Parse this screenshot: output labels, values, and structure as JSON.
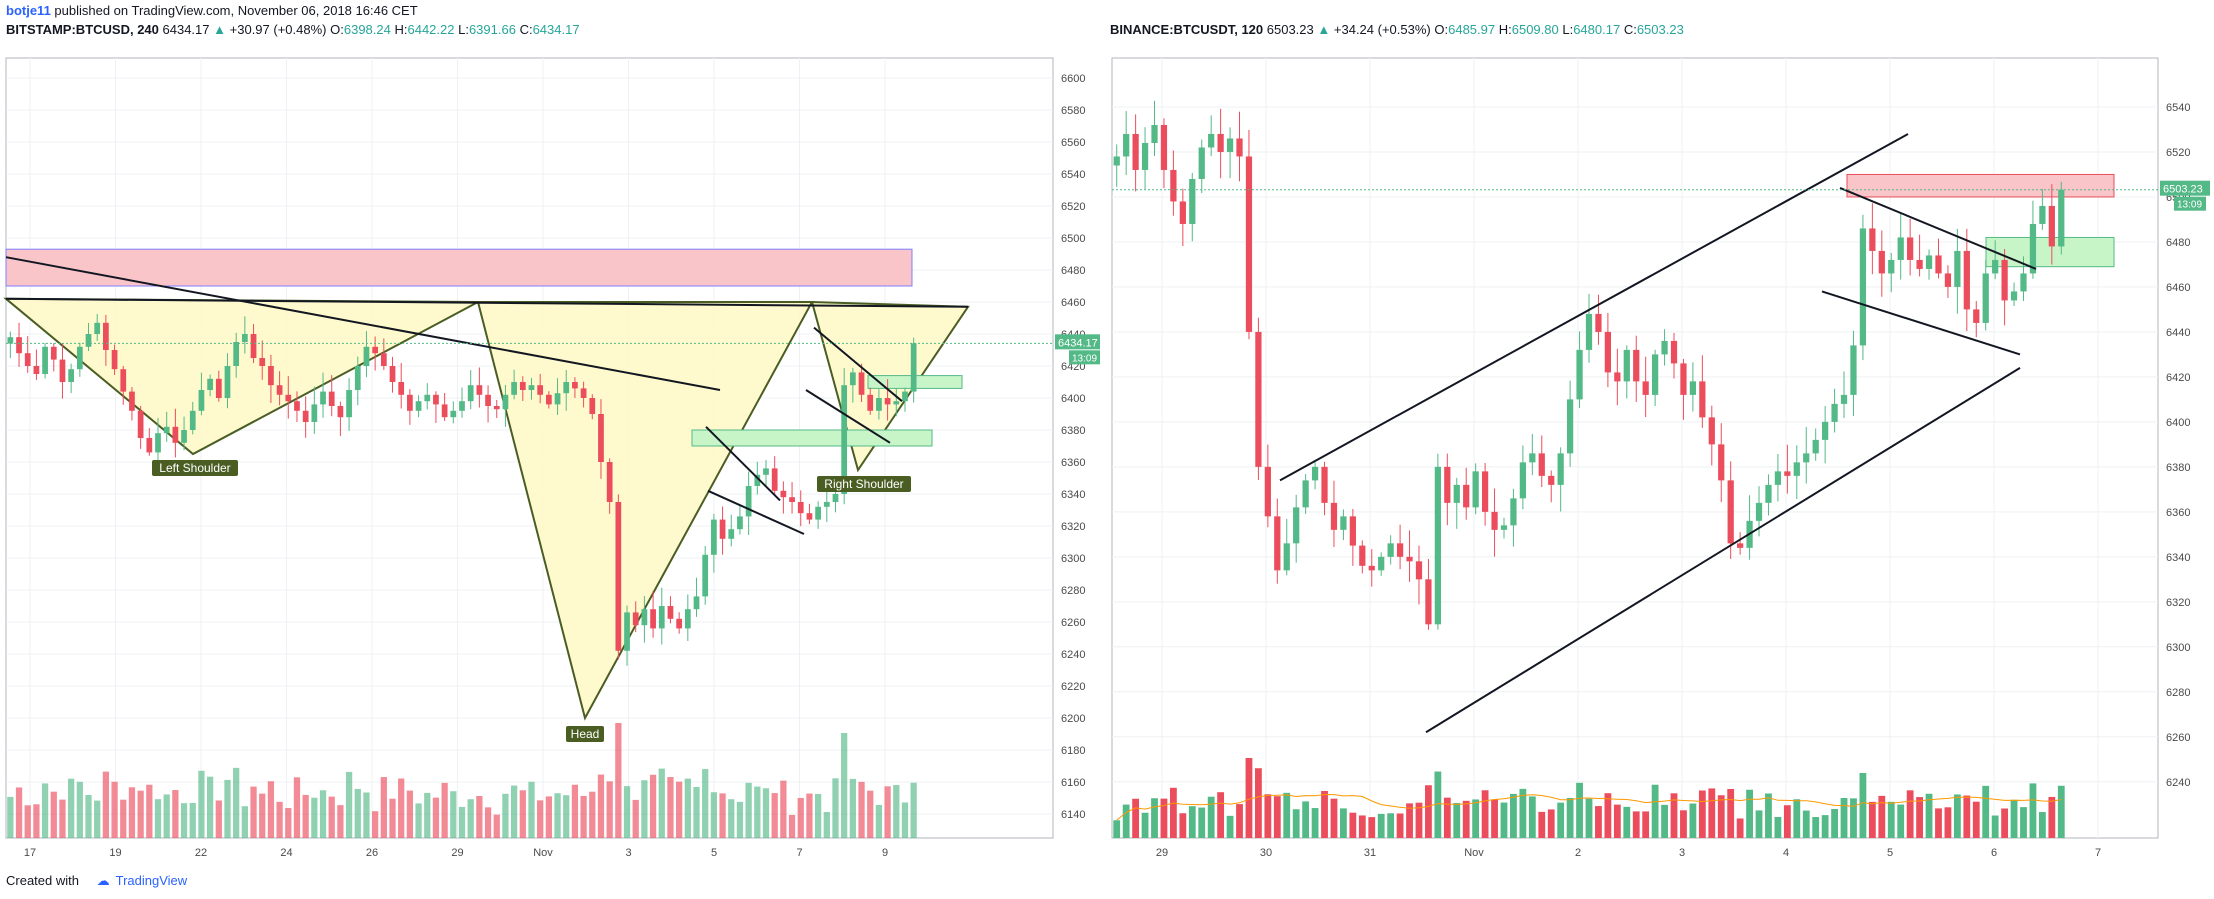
{
  "header": {
    "user": "botje11",
    "published": " published on TradingView.com, November 06, 2018 16:46 CET"
  },
  "footer": {
    "created_with": "Created with",
    "brand": "TradingView"
  },
  "chart_data": [
    {
      "type": "candlestick",
      "symbol": "BITSTAMP:BTCUSD, 240",
      "last": "6434.17",
      "change": "+30.97 (+0.48%)",
      "ohlc": {
        "O": "6398.24",
        "H": "6442.22",
        "L": "6391.66",
        "C": "6434.17"
      },
      "price_label": "6434.17",
      "countdown": "13:09",
      "ylim": [
        6125,
        6610
      ],
      "y_ticks": [
        6140,
        6160,
        6180,
        6200,
        6220,
        6240,
        6260,
        6280,
        6300,
        6320,
        6340,
        6360,
        6380,
        6400,
        6420,
        6440,
        6460,
        6480,
        6500,
        6520,
        6540,
        6560,
        6580,
        6600
      ],
      "x_ticks": [
        "17",
        "19",
        "22",
        "24",
        "26",
        "29",
        "Nov",
        "3",
        "5",
        "7",
        "9"
      ],
      "annotations": [
        "Left Shoulder",
        "Head",
        "Right Shoulder"
      ],
      "colors": {
        "up": "#53b987",
        "down": "#eb4d5c",
        "resistance": "#f9c5c9",
        "support": "#c8f5c8",
        "pattern": "#fff9c4"
      },
      "closes": [
        6438,
        6428,
        6420,
        6415,
        6432,
        6424,
        6410,
        6418,
        6432,
        6440,
        6447,
        6430,
        6418,
        6404,
        6392,
        6375,
        6366,
        6378,
        6382,
        6372,
        6380,
        6392,
        6405,
        6412,
        6400,
        6420,
        6435,
        6440,
        6425,
        6420,
        6408,
        6402,
        6398,
        6392,
        6385,
        6396,
        6404,
        6395,
        6388,
        6405,
        6420,
        6432,
        6428,
        6420,
        6410,
        6402,
        6392,
        6398,
        6402,
        6396,
        6388,
        6392,
        6398,
        6408,
        6402,
        6395,
        6393,
        6402,
        6410,
        6405,
        6408,
        6402,
        6396,
        6403,
        6410,
        6406,
        6400,
        6390,
        6360,
        6335,
        6242,
        6266,
        6258,
        6268,
        6256,
        6270,
        6262,
        6256,
        6268,
        6276,
        6302,
        6324,
        6312,
        6318,
        6326,
        6345,
        6352,
        6356,
        6342,
        6338,
        6335,
        6328,
        6324,
        6332,
        6335,
        6340,
        6408,
        6416,
        6402,
        6392,
        6400,
        6396,
        6398,
        6404,
        6434.17
      ],
      "volume_scale": "relative"
    },
    {
      "type": "candlestick",
      "symbol": "BINANCE:BTCUSDT, 120",
      "last": "6503.23",
      "change": "+34.24 (+0.53%)",
      "ohlc": {
        "O": "6485.97",
        "H": "6509.80",
        "L": "6480.17",
        "C": "6503.23"
      },
      "price_label": "6503.23",
      "countdown": "13:09",
      "ylim": [
        6215,
        6560
      ],
      "y_ticks": [
        6240,
        6260,
        6280,
        6300,
        6320,
        6340,
        6360,
        6380,
        6400,
        6420,
        6440,
        6460,
        6480,
        6500,
        6520,
        6540
      ],
      "x_ticks": [
        "29",
        "30",
        "31",
        "Nov",
        "2",
        "3",
        "4",
        "5",
        "6",
        "7"
      ],
      "colors": {
        "up": "#53b987",
        "down": "#eb4d5c",
        "resistance": "#f9c5c9",
        "support": "#c8f5c8",
        "ma": "#ff9800"
      },
      "closes": [
        6518,
        6528,
        6512,
        6524,
        6532,
        6512,
        6498,
        6488,
        6508,
        6522,
        6528,
        6520,
        6526,
        6518,
        6440,
        6380,
        6358,
        6334,
        6346,
        6362,
        6374,
        6380,
        6364,
        6352,
        6358,
        6345,
        6336,
        6334,
        6340,
        6346,
        6340,
        6338,
        6330,
        6310,
        6380,
        6364,
        6372,
        6362,
        6378,
        6360,
        6352,
        6354,
        6366,
        6382,
        6386,
        6376,
        6372,
        6386,
        6410,
        6432,
        6448,
        6440,
        6422,
        6418,
        6432,
        6418,
        6412,
        6430,
        6436,
        6426,
        6412,
        6418,
        6402,
        6390,
        6374,
        6346,
        6344,
        6356,
        6364,
        6372,
        6378,
        6376,
        6382,
        6386,
        6392,
        6400,
        6408,
        6412,
        6434,
        6486,
        6476,
        6466,
        6472,
        6482,
        6472,
        6468,
        6474,
        6466,
        6460,
        6476,
        6450,
        6444,
        6466,
        6472,
        6454,
        6458,
        6466,
        6488,
        6496,
        6478,
        6503.23
      ],
      "volume_scale": "relative"
    }
  ]
}
